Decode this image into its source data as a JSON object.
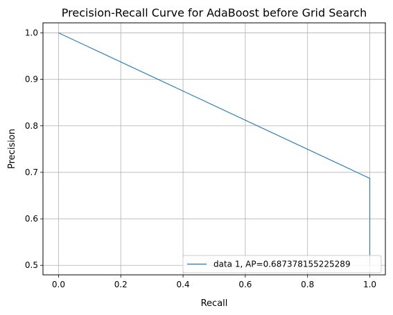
{
  "chart_data": {
    "type": "line",
    "title": "Precision-Recall Curve for AdaBoost before Grid Search",
    "xlabel": "Recall",
    "ylabel": "Precision",
    "xlim": [
      -0.05,
      1.05
    ],
    "ylim": [
      0.4795,
      1.0215
    ],
    "xticks": [
      0.0,
      0.2,
      0.4,
      0.6,
      0.8,
      1.0
    ],
    "xtick_labels": [
      "0.0",
      "0.2",
      "0.4",
      "0.6",
      "0.8",
      "1.0"
    ],
    "yticks": [
      0.5,
      0.6,
      0.7,
      0.8,
      0.9,
      1.0
    ],
    "ytick_labels": [
      "0.5",
      "0.6",
      "0.7",
      "0.8",
      "0.9",
      "1.0"
    ],
    "grid": true,
    "legend_position": "lower right",
    "series": [
      {
        "name": "data 1, AP=0.687378155225289",
        "color": "#1f77b4",
        "x": [
          0.0,
          1.0,
          1.0
        ],
        "y": [
          1.0,
          0.687,
          0.5
        ]
      }
    ]
  }
}
